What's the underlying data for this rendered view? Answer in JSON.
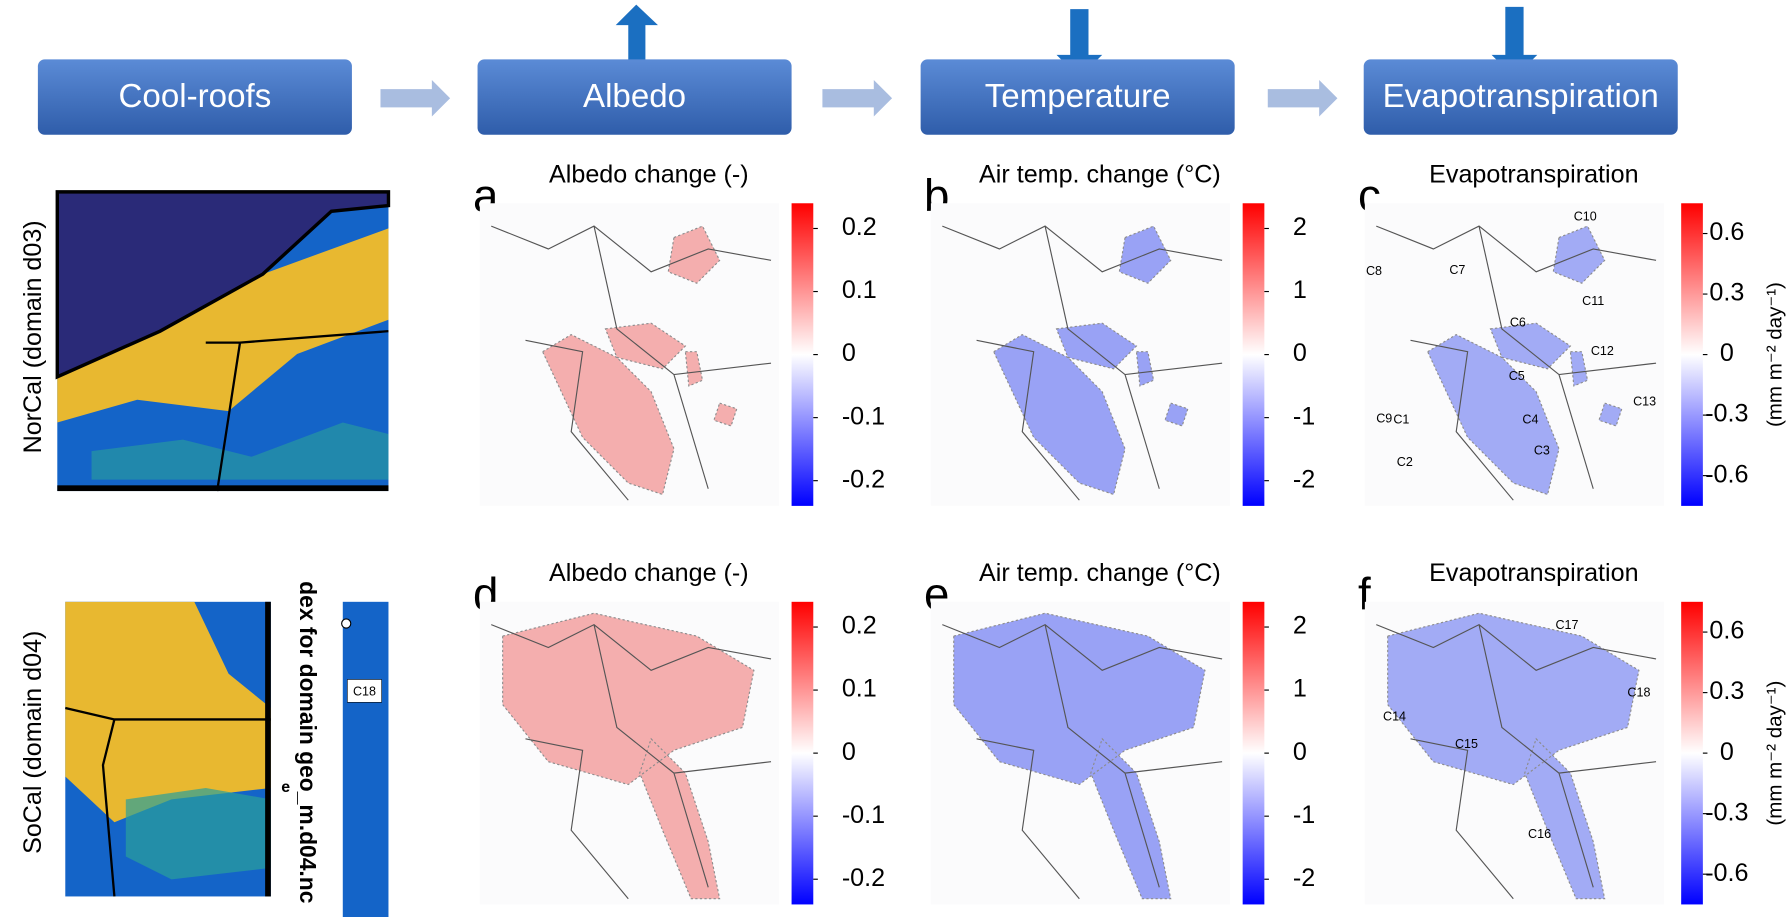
{
  "flow": {
    "boxes": [
      "Cool-roofs",
      "Albedo",
      "Temperature",
      "Evapotranspiration"
    ]
  },
  "rows": [
    "NorCal (domain d03)",
    "SoCal (domain d04)"
  ],
  "inset": {
    "text": "dex for domain geo_m.d04.nc",
    "letter": "e",
    "county": "C18"
  },
  "panels": [
    {
      "letter": "a",
      "title": "Albedo change (-)",
      "colorbar": {
        "lim": [
          -0.24,
          0.24
        ],
        "ticks": [
          0.2,
          0.1,
          0,
          -0.1,
          -0.2
        ]
      }
    },
    {
      "letter": "b",
      "title": "Air temp. change (°C)",
      "colorbar": {
        "lim": [
          -2.4,
          2.4
        ],
        "ticks": [
          2,
          1,
          0,
          -1,
          -2
        ]
      }
    },
    {
      "letter": "c",
      "title": "Evapotranspiration",
      "colorbar": {
        "lim": [
          -0.75,
          0.75
        ],
        "ticks": [
          0.6,
          0.3,
          0,
          -0.3,
          -0.6
        ],
        "unit": "(mm m⁻² day⁻¹)"
      },
      "counties": [
        "C10",
        "C8",
        "C7",
        "C11",
        "C6",
        "C12",
        "C5",
        "C9",
        "C13",
        "C1",
        "C4",
        "C3",
        "C2"
      ]
    },
    {
      "letter": "d",
      "title": "Albedo change (-)",
      "colorbar": {
        "lim": [
          -0.24,
          0.24
        ],
        "ticks": [
          0.2,
          0.1,
          0,
          -0.1,
          -0.2
        ]
      }
    },
    {
      "letter": "e",
      "title": "Air temp. change (°C)",
      "colorbar": {
        "lim": [
          -2.4,
          2.4
        ],
        "ticks": [
          2,
          1,
          0,
          -1,
          -2
        ]
      }
    },
    {
      "letter": "f",
      "title": "Evapotranspiration",
      "colorbar": {
        "lim": [
          -0.75,
          0.75
        ],
        "ticks": [
          0.6,
          0.3,
          0,
          -0.3,
          -0.6
        ],
        "unit": "(mm m⁻² day⁻¹)"
      },
      "counties": [
        "C17",
        "C18",
        "C14",
        "C15",
        "C16"
      ]
    }
  ]
}
